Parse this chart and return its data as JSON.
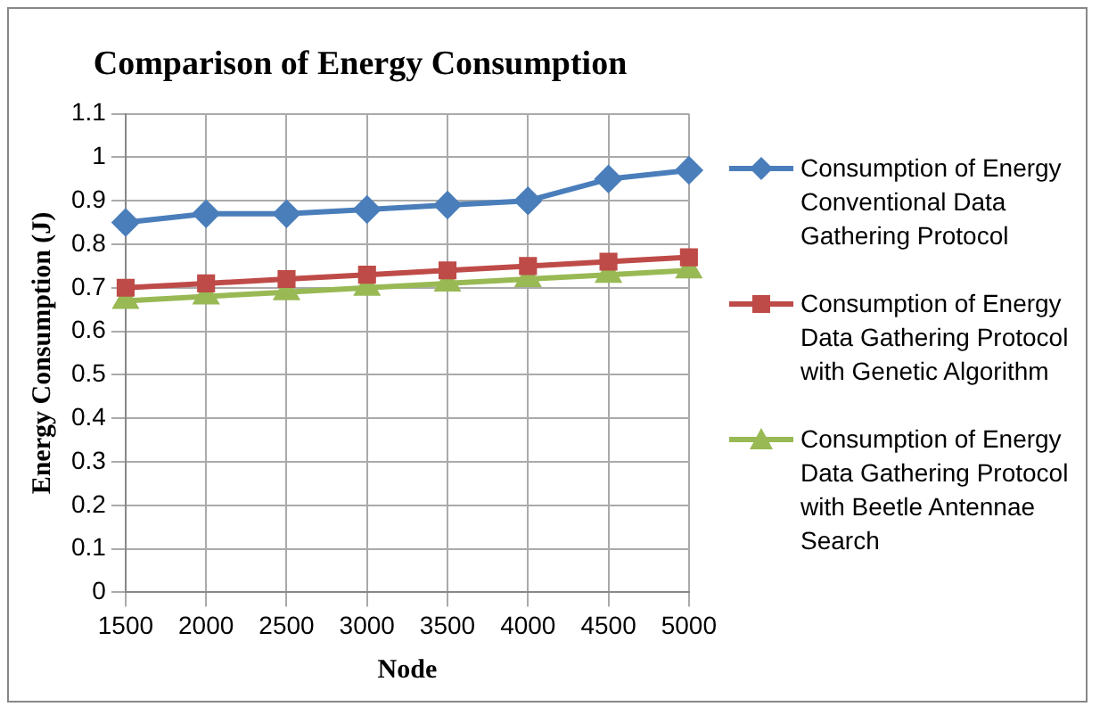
{
  "chart_data": {
    "type": "line",
    "title": "Comparison of Energy Consumption",
    "xlabel": "Node",
    "ylabel": "Energy Consumption (J)",
    "categories": [
      "1500",
      "2000",
      "2500",
      "3000",
      "3500",
      "4000",
      "4500",
      "5000"
    ],
    "series": [
      {
        "name": "Consumption of Energy Conventional Data Gathering Protocol",
        "color": "#4a7ebb",
        "marker": "diamond",
        "values": [
          0.85,
          0.87,
          0.87,
          0.88,
          0.89,
          0.9,
          0.95,
          0.97
        ]
      },
      {
        "name": "Consumption of Energy Data Gathering Protocol with Genetic Algorithm",
        "color": "#be4b48",
        "marker": "square",
        "values": [
          0.7,
          0.71,
          0.72,
          0.73,
          0.74,
          0.75,
          0.76,
          0.77
        ]
      },
      {
        "name": "Consumption of Energy Data Gathering Protocol with Beetle Antennae Search",
        "color": "#98b954",
        "marker": "triangle",
        "values": [
          0.67,
          0.68,
          0.69,
          0.7,
          0.71,
          0.72,
          0.73,
          0.74
        ]
      }
    ],
    "ylim": [
      0,
      1.1
    ],
    "yticks": [
      0,
      0.1,
      0.2,
      0.3,
      0.4,
      0.5,
      0.6,
      0.7,
      0.8,
      0.9,
      1,
      1.1
    ],
    "grid": true,
    "legend": "right",
    "line_style": "solid"
  }
}
